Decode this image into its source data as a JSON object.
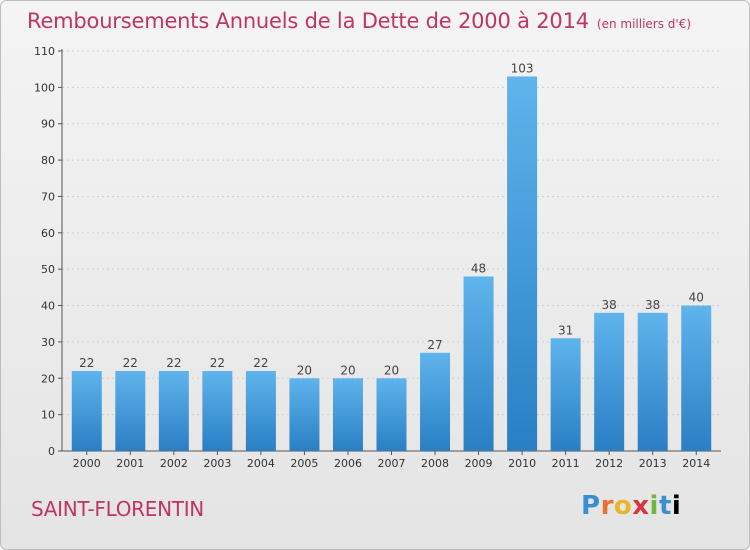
{
  "header": {
    "title": "Remboursements Annuels de la Dette de 2000 à 2014",
    "unit": "(en milliers d'€)"
  },
  "footer": {
    "commune": "SAINT-FLORENTIN",
    "logo_letters": [
      "P",
      "r",
      "o",
      "x",
      "i",
      "t",
      "i"
    ]
  },
  "colors": {
    "bar_light": "#5fb4ec",
    "bar_dark": "#2a7fc4",
    "title": "#c0355f"
  },
  "chart_data": {
    "type": "bar",
    "categories": [
      "2000",
      "2001",
      "2002",
      "2003",
      "2004",
      "2005",
      "2006",
      "2007",
      "2008",
      "2009",
      "2010",
      "2011",
      "2012",
      "2013",
      "2014"
    ],
    "values": [
      22,
      22,
      22,
      22,
      22,
      20,
      20,
      20,
      27,
      48,
      103,
      31,
      38,
      38,
      40
    ],
    "title": "Remboursements Annuels de la Dette de 2000 à 2014",
    "xlabel": "",
    "ylabel": "",
    "ylim": [
      0,
      110
    ],
    "yticks": [
      0,
      10,
      20,
      30,
      40,
      50,
      60,
      70,
      80,
      90,
      100,
      110
    ],
    "grid": true,
    "legend": "none"
  }
}
